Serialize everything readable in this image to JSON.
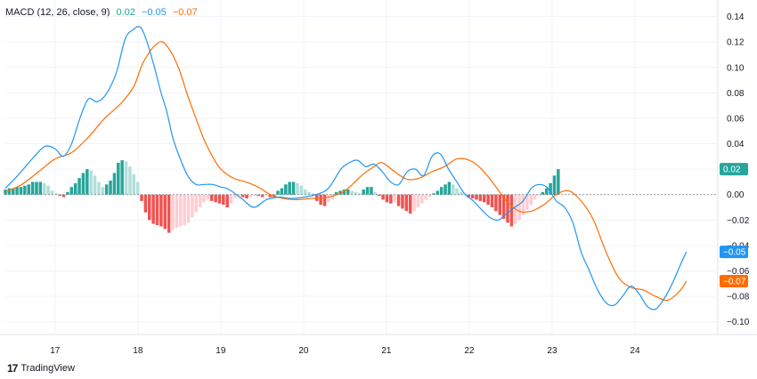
{
  "legend": {
    "title": "MACD (12, 26, close, 9)",
    "hist_value": "0.02",
    "macd_value": "−0.05",
    "signal_value": "−0.07"
  },
  "brand": {
    "logo": "17",
    "name": "TradingView"
  },
  "colors": {
    "macd": "#2196f3",
    "signal": "#ff6d00",
    "hist_pos_strong": "#26a69a",
    "hist_pos_weak": "#b2dfdb",
    "hist_neg_strong": "#ef5350",
    "hist_neg_weak": "#ffcdd2",
    "grid": "#f0f3fa",
    "zero_line": "#787b86"
  },
  "chart_data": {
    "type": "line",
    "title": "MACD (12, 26, close, 9)",
    "x_tick_labels": [
      "17",
      "18",
      "19",
      "20",
      "21",
      "22",
      "23",
      "24"
    ],
    "x_tick_days": [
      17,
      18,
      19,
      20,
      21,
      22,
      23,
      24
    ],
    "y_tick_labels": [
      "0.14",
      "0.12",
      "0.10",
      "0.08",
      "0.06",
      "0.04",
      "0.02",
      "0.00",
      "−0.02",
      "−0.04",
      "−0.06",
      "−0.08",
      "−0.10"
    ],
    "y_tick_values": [
      0.14,
      0.12,
      0.1,
      0.08,
      0.06,
      0.04,
      0.02,
      0.0,
      -0.02,
      -0.04,
      -0.06,
      -0.08,
      -0.1
    ],
    "xlim": [
      16.4,
      25.0
    ],
    "ylim": [
      -0.11,
      0.153
    ],
    "grid": true,
    "series": [
      {
        "name": "MACD",
        "x": [
          16.4,
          16.55,
          16.75,
          16.88,
          17.0,
          17.1,
          17.2,
          17.3,
          17.4,
          17.5,
          17.58,
          17.67,
          17.75,
          17.85,
          17.95,
          18.0,
          18.05,
          18.12,
          18.2,
          18.28,
          18.35,
          18.42,
          18.5,
          18.6,
          18.7,
          18.8,
          18.9,
          19.0,
          19.1,
          19.25,
          19.4,
          19.55,
          19.7,
          19.85,
          20.0,
          20.15,
          20.3,
          20.45,
          20.55,
          20.65,
          20.75,
          20.85,
          20.95,
          21.05,
          21.15,
          21.25,
          21.35,
          21.45,
          21.55,
          21.65,
          21.75,
          21.85,
          21.95,
          22.05,
          22.15,
          22.25,
          22.35,
          22.45,
          22.55,
          22.65,
          22.75,
          22.85,
          22.95,
          23.05,
          23.15,
          23.25,
          23.35,
          23.45,
          23.55,
          23.65,
          23.75,
          23.85,
          23.95,
          24.05,
          24.15,
          24.25,
          24.35,
          24.45,
          24.55,
          24.62
        ],
        "values": [
          0.005,
          0.015,
          0.03,
          0.038,
          0.036,
          0.03,
          0.04,
          0.06,
          0.075,
          0.073,
          0.076,
          0.085,
          0.098,
          0.123,
          0.13,
          0.132,
          0.13,
          0.118,
          0.1,
          0.08,
          0.065,
          0.045,
          0.03,
          0.015,
          0.008,
          0.008,
          0.008,
          0.006,
          0.004,
          -0.003,
          -0.01,
          -0.004,
          -0.002,
          -0.003,
          -0.002,
          0.0,
          0.005,
          0.02,
          0.025,
          0.027,
          0.022,
          0.024,
          0.018,
          0.01,
          0.008,
          0.018,
          0.02,
          0.015,
          0.03,
          0.032,
          0.02,
          0.01,
          0.0,
          -0.005,
          -0.012,
          -0.018,
          -0.02,
          -0.015,
          -0.01,
          -0.005,
          0.005,
          0.008,
          0.005,
          -0.005,
          -0.01,
          -0.022,
          -0.045,
          -0.06,
          -0.075,
          -0.085,
          -0.087,
          -0.08,
          -0.072,
          -0.078,
          -0.088,
          -0.09,
          -0.082,
          -0.07,
          -0.055,
          -0.045
        ]
      },
      {
        "name": "Signal",
        "x": [
          16.4,
          16.6,
          16.8,
          17.0,
          17.2,
          17.4,
          17.6,
          17.8,
          17.95,
          18.05,
          18.15,
          18.22,
          18.3,
          18.4,
          18.5,
          18.6,
          18.7,
          18.8,
          18.9,
          19.0,
          19.15,
          19.3,
          19.45,
          19.6,
          19.75,
          19.9,
          20.1,
          20.3,
          20.5,
          20.7,
          20.85,
          20.95,
          21.1,
          21.25,
          21.4,
          21.55,
          21.7,
          21.85,
          22.0,
          22.15,
          22.3,
          22.45,
          22.6,
          22.75,
          22.9,
          23.05,
          23.2,
          23.35,
          23.5,
          23.65,
          23.8,
          23.95,
          24.1,
          24.25,
          24.4,
          24.55,
          24.62
        ],
        "values": [
          0.002,
          0.008,
          0.018,
          0.028,
          0.033,
          0.045,
          0.06,
          0.072,
          0.085,
          0.102,
          0.113,
          0.118,
          0.12,
          0.112,
          0.098,
          0.078,
          0.06,
          0.043,
          0.03,
          0.02,
          0.013,
          0.01,
          0.006,
          0.0,
          -0.003,
          -0.004,
          -0.003,
          -0.002,
          0.003,
          0.015,
          0.022,
          0.025,
          0.018,
          0.012,
          0.013,
          0.018,
          0.022,
          0.028,
          0.027,
          0.02,
          0.008,
          -0.005,
          -0.013,
          -0.013,
          -0.008,
          0.0,
          0.003,
          -0.005,
          -0.02,
          -0.045,
          -0.065,
          -0.073,
          -0.075,
          -0.08,
          -0.083,
          -0.075,
          -0.068
        ]
      }
    ],
    "histogram": {
      "name": "Histogram",
      "x_start": 16.4,
      "step": 0.047,
      "values": [
        0.004,
        0.005,
        0.005,
        0.006,
        0.006,
        0.007,
        0.008,
        0.01,
        0.01,
        0.01,
        0.009,
        0.007,
        0.003,
        0.001,
        -0.001,
        -0.002,
        0.002,
        0.006,
        0.009,
        0.013,
        0.017,
        0.02,
        0.019,
        0.015,
        0.01,
        0.006,
        0.008,
        0.011,
        0.017,
        0.025,
        0.027,
        0.026,
        0.022,
        0.016,
        0.01,
        -0.005,
        -0.014,
        -0.02,
        -0.023,
        -0.024,
        -0.025,
        -0.027,
        -0.03,
        -0.028,
        -0.026,
        -0.025,
        -0.024,
        -0.022,
        -0.018,
        -0.014,
        -0.01,
        -0.006,
        -0.004,
        -0.005,
        -0.006,
        -0.007,
        -0.008,
        -0.01,
        -0.007,
        -0.003,
        -0.002,
        -0.002,
        -0.003,
        -0.002,
        -0.001,
        -0.001,
        -0.002,
        -0.001,
        -0.002,
        -0.002,
        0.003,
        0.005,
        0.008,
        0.01,
        0.01,
        0.009,
        0.007,
        0.004,
        0.002,
        0.001,
        -0.005,
        -0.008,
        -0.009,
        -0.006,
        -0.004,
        0.002,
        0.003,
        0.004,
        0.004,
        0.003,
        0.002,
        0.001,
        0.004,
        0.006,
        0.006,
        0.002,
        -0.001,
        -0.004,
        -0.006,
        -0.007,
        -0.006,
        -0.009,
        -0.011,
        -0.013,
        -0.015,
        -0.013,
        -0.01,
        -0.007,
        -0.004,
        -0.002,
        0.001,
        0.003,
        0.006,
        0.008,
        0.01,
        0.008,
        0.005,
        0.002,
        0.001,
        -0.002,
        -0.003,
        -0.004,
        -0.005,
        -0.006,
        -0.008,
        -0.01,
        -0.013,
        -0.016,
        -0.019,
        -0.022,
        -0.025,
        -0.023,
        -0.02,
        -0.016,
        -0.012,
        -0.008,
        -0.004,
        -0.001,
        0.002,
        0.005,
        0.009,
        0.015,
        0.02
      ]
    }
  }
}
